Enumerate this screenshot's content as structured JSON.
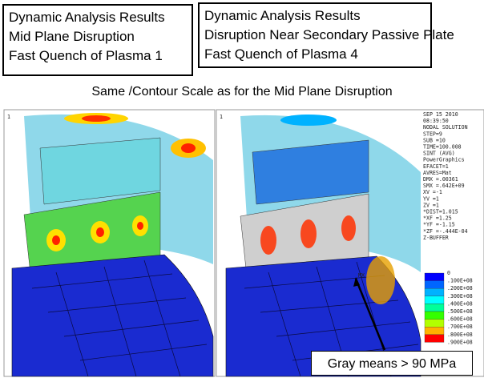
{
  "boxes": [
    {
      "lines": [
        "Dynamic Analysis Results",
        "Mid Plane Disruption",
        "Fast Quench of Plasma 1"
      ]
    },
    {
      "lines": [
        "Dynamic Analysis Results",
        "Disruption Near Secondary Passive Plate",
        "Fast Quench of Plasma 4"
      ]
    }
  ],
  "subtitle": "Same /Contour Scale as for the Mid Plane Disruption",
  "figures": [
    {
      "corner_label": "1"
    },
    {
      "corner_label": "1",
      "max_label": "MX"
    }
  ],
  "ansys_info": {
    "lines": [
      "SEP 15 2010",
      "08:39:50",
      "NODAL SOLUTION",
      "STEP=9",
      "SUB =10",
      "TIME=100.008",
      "SINT      (AVG)",
      "PowerGraphics",
      "EFACET=1",
      "AVRES=Mat",
      "DMX =.00361",
      "SMX =.642E+09",
      "XV  =-1",
      "YV  =1",
      "ZV  =1",
      "*DIST=1.015",
      "*XF  =1.25",
      "*YF  =-1.15",
      "*ZF  =-.444E-04",
      "Z-BUFFER"
    ]
  },
  "contour_scale": {
    "levels": [
      "0",
      ".100E+08",
      ".200E+08",
      ".300E+08",
      ".400E+08",
      ".500E+08",
      ".600E+08",
      ".700E+08",
      ".800E+08",
      ".900E+08"
    ],
    "colors": [
      "#0000ff",
      "#0066ff",
      "#00b2ff",
      "#00ffff",
      "#00ff99",
      "#33ff00",
      "#b2ff00",
      "#ffb200",
      "#ff0000"
    ]
  },
  "callout": "Gray means > 90 MPa"
}
